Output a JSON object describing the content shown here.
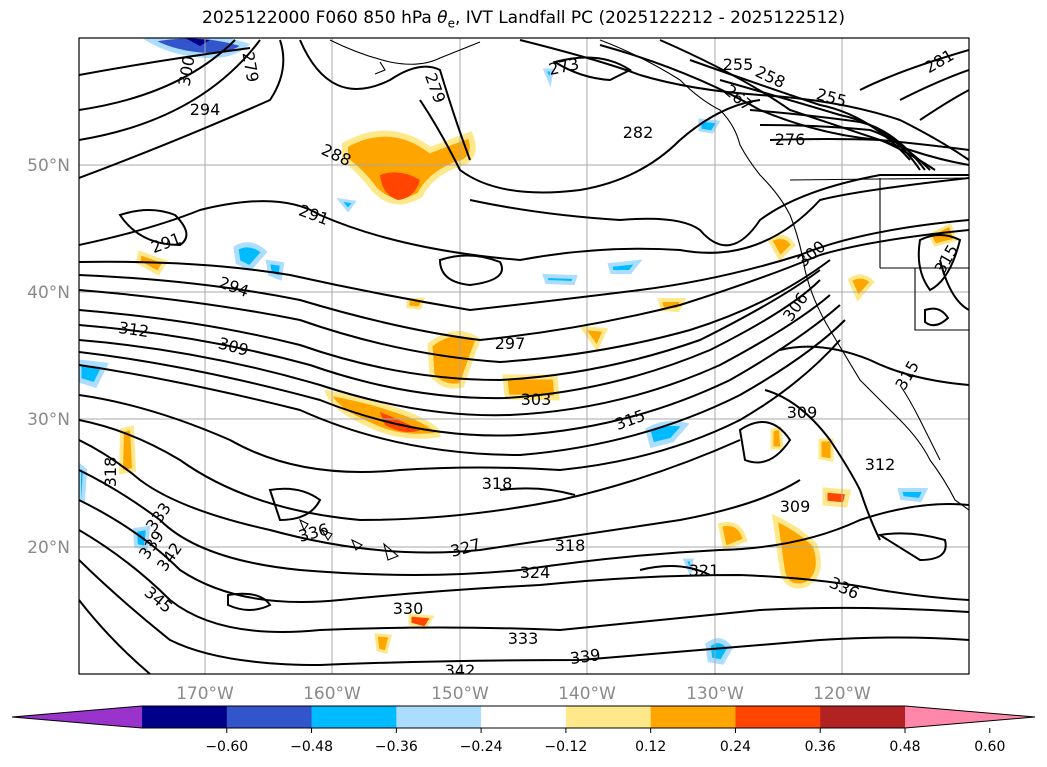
{
  "figure": {
    "title_prefix": "2025122000 F060 850 hPa ",
    "title_theta": "θ",
    "title_sub": "e",
    "title_suffix": ", IVT Landfall PC (2025122212 - 2025122512)"
  },
  "map": {
    "lon_ticks": [
      "170°W",
      "160°W",
      "150°W",
      "140°W",
      "130°W",
      "120°W"
    ],
    "lat_ticks": [
      "50°N",
      "40°N",
      "30°N",
      "20°N"
    ],
    "gridlines": true,
    "contour_field": "850 hPa theta-e",
    "contour_labels": [
      {
        "text": "273",
        "value": 273
      },
      {
        "text": "255",
        "value": 255
      },
      {
        "text": "258",
        "value": 258
      },
      {
        "text": "255",
        "value": 255
      },
      {
        "text": "267",
        "value": 267
      },
      {
        "text": "276",
        "value": 276
      },
      {
        "text": "279",
        "value": 279
      },
      {
        "text": "282",
        "value": 282
      },
      {
        "text": "288",
        "value": 288
      },
      {
        "text": "294",
        "value": 294
      },
      {
        "text": "291",
        "value": 291
      },
      {
        "text": "291",
        "value": 291
      },
      {
        "text": "294",
        "value": 294
      },
      {
        "text": "300",
        "value": 300
      },
      {
        "text": "306",
        "value": 306
      },
      {
        "text": "312",
        "value": 312
      },
      {
        "text": "309",
        "value": 309
      },
      {
        "text": "297",
        "value": 297
      },
      {
        "text": "303",
        "value": 303
      },
      {
        "text": "315",
        "value": 315
      },
      {
        "text": "309",
        "value": 309
      },
      {
        "text": "312",
        "value": 312
      },
      {
        "text": "315",
        "value": 315
      },
      {
        "text": "318",
        "value": 318
      },
      {
        "text": "318",
        "value": 318
      },
      {
        "text": "309",
        "value": 309
      },
      {
        "text": "327",
        "value": 327
      },
      {
        "text": "318",
        "value": 318
      },
      {
        "text": "324",
        "value": 324
      },
      {
        "text": "321",
        "value": 321
      },
      {
        "text": "336",
        "value": 336
      },
      {
        "text": "336",
        "value": 336
      },
      {
        "text": "333",
        "value": 333
      },
      {
        "text": "339",
        "value": 339
      },
      {
        "text": "342",
        "value": 342
      },
      {
        "text": "345",
        "value": 345
      },
      {
        "text": "330",
        "value": 330
      },
      {
        "text": "333",
        "value": 333
      },
      {
        "text": "339",
        "value": 339
      },
      {
        "text": "342",
        "value": 342
      },
      {
        "text": "281",
        "value": 281
      },
      {
        "text": "315",
        "value": 315
      },
      {
        "text": "300",
        "value": 300
      },
      {
        "text": "279",
        "value": 279
      }
    ]
  },
  "colorbar": {
    "tick_labels": [
      "−0.60",
      "−0.48",
      "−0.36",
      "−0.24",
      "−0.12",
      "0.12",
      "0.24",
      "0.36",
      "0.48",
      "0.60"
    ],
    "colors": [
      "#9933cc",
      "#000088",
      "#3355cc",
      "#00bbff",
      "#aaddff",
      "#ffffff",
      "#ffe88a",
      "#ffa500",
      "#ff4500",
      "#b22222",
      "#ff88aa"
    ]
  }
}
